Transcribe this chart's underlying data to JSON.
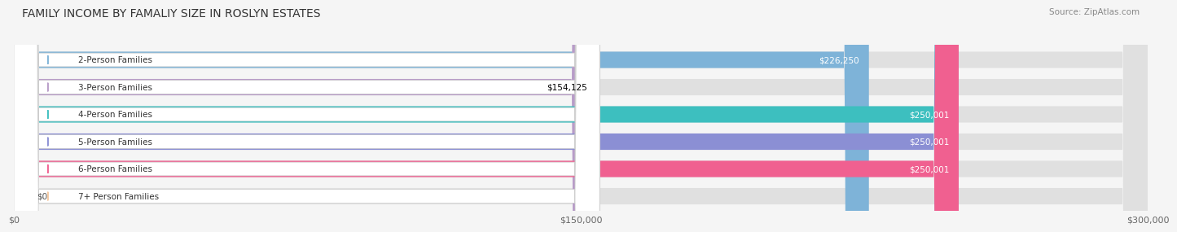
{
  "title": "FAMILY INCOME BY FAMALIY SIZE IN ROSLYN ESTATES",
  "source": "Source: ZipAtlas.com",
  "categories": [
    "2-Person Families",
    "3-Person Families",
    "4-Person Families",
    "5-Person Families",
    "6-Person Families",
    "7+ Person Families"
  ],
  "values": [
    226250,
    154125,
    250001,
    250001,
    250001,
    0
  ],
  "bar_colors": [
    "#7EB3D8",
    "#B89CC8",
    "#3DBFBF",
    "#8B8FD4",
    "#F06090",
    "#F5C8A0"
  ],
  "label_colors": [
    "white",
    "black",
    "white",
    "white",
    "white",
    "black"
  ],
  "label_texts": [
    "$226,250",
    "$154,125",
    "$250,001",
    "$250,001",
    "$250,001",
    "$0"
  ],
  "x_max": 300000,
  "x_ticks": [
    0,
    150000,
    300000
  ],
  "x_tick_labels": [
    "$0",
    "$150,000",
    "$300,000"
  ],
  "bg_color": "#f5f5f5",
  "bar_bg_color": "#e0e0e0",
  "title_fontsize": 10,
  "source_fontsize": 7.5
}
